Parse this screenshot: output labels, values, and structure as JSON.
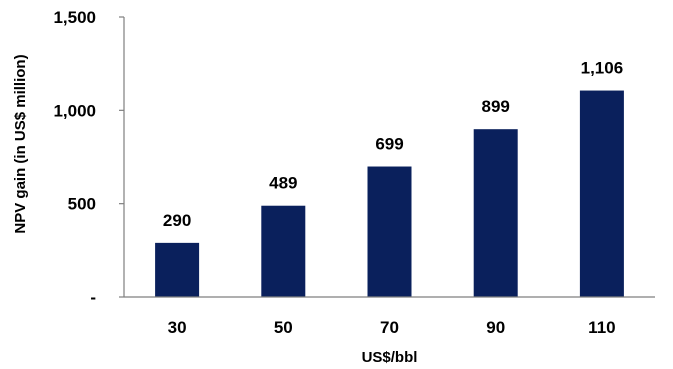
{
  "chart_data": {
    "type": "bar",
    "title": "",
    "xlabel": "US$/bbl",
    "ylabel": "NPV gain (in US$ million)",
    "categories": [
      "30",
      "50",
      "70",
      "90",
      "110"
    ],
    "values": [
      290,
      489,
      699,
      899,
      1106
    ],
    "data_labels": [
      "290",
      "489",
      "699",
      "899",
      "1,106"
    ],
    "ylim": [
      0,
      1500
    ],
    "yticks": [
      0,
      500,
      1000,
      1500
    ],
    "ytick_labels": [
      "-",
      "500",
      "1,000",
      "1,500"
    ],
    "bar_color": "#0a205c",
    "grid": false,
    "legend": "none"
  }
}
